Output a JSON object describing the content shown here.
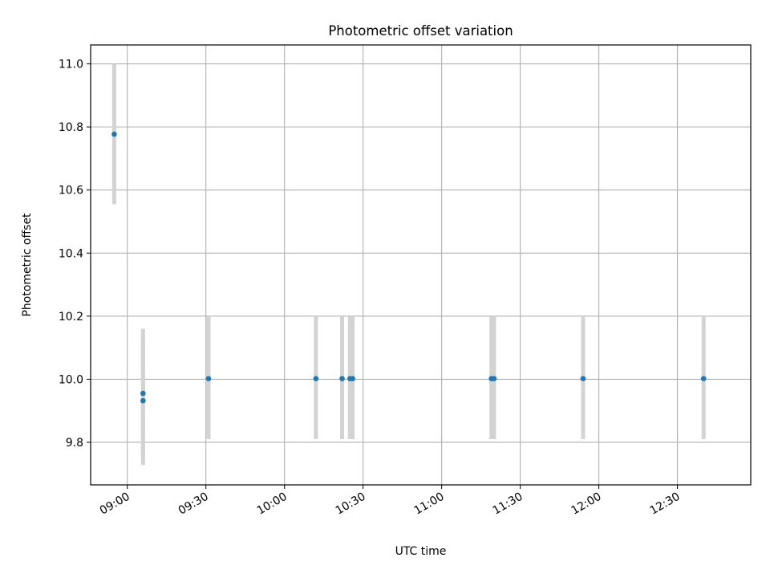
{
  "chart_data": {
    "type": "scatter",
    "title": "Photometric offset variation",
    "xlabel": "UTC time",
    "ylabel": "Photometric offset",
    "grid": true,
    "xlim": [
      "08:46",
      "12:58"
    ],
    "ylim": [
      9.665,
      11.06
    ],
    "x_ticks": [
      "09:00",
      "09:30",
      "10:00",
      "10:30",
      "11:00",
      "11:30",
      "12:00",
      "12:30"
    ],
    "y_ticks": [
      "9.8",
      "10.0",
      "10.2",
      "10.4",
      "10.6",
      "10.8",
      "11.0"
    ],
    "marker_color": "#1f77b4",
    "errorbar_color": "#d3d3d3",
    "series": [
      {
        "points": [
          {
            "x": "08:55",
            "y": 10.777,
            "ylow": 10.555,
            "yhigh": 11.0
          },
          {
            "x": "09:06",
            "y": 9.955,
            "ylow": 9.75,
            "yhigh": 10.16
          },
          {
            "x": "09:06",
            "y": 9.932,
            "ylow": 9.728,
            "yhigh": 10.135
          },
          {
            "x": "09:31",
            "y": 10.002,
            "ylow": 9.81,
            "yhigh": 10.2
          },
          {
            "x": "10:12",
            "y": 10.002,
            "ylow": 9.81,
            "yhigh": 10.2
          },
          {
            "x": "10:22",
            "y": 10.002,
            "ylow": 9.81,
            "yhigh": 10.2
          },
          {
            "x": "10:25",
            "y": 10.002,
            "ylow": 9.81,
            "yhigh": 10.2
          },
          {
            "x": "10:26",
            "y": 10.002,
            "ylow": 9.81,
            "yhigh": 10.2
          },
          {
            "x": "11:19",
            "y": 10.002,
            "ylow": 9.81,
            "yhigh": 10.2
          },
          {
            "x": "11:20",
            "y": 10.002,
            "ylow": 9.81,
            "yhigh": 10.2
          },
          {
            "x": "11:54",
            "y": 10.002,
            "ylow": 9.81,
            "yhigh": 10.2
          },
          {
            "x": "12:40",
            "y": 10.002,
            "ylow": 9.81,
            "yhigh": 10.2
          }
        ]
      }
    ]
  }
}
